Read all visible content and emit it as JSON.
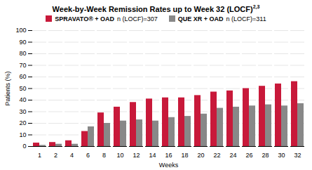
{
  "chart_data": {
    "type": "bar",
    "title": "Week-by-Week Remission Rates up to Week 32 (LOCF)",
    "annotations": [
      "2,3"
    ],
    "x_label": "Weeks",
    "y_label": "Patients (%)",
    "categories": [
      "1",
      "2",
      "4",
      "6",
      "8",
      "10",
      "12",
      "14",
      "16",
      "18",
      "20",
      "22",
      "24",
      "26",
      "28",
      "30",
      "32"
    ],
    "series": [
      {
        "name": "SPRAVATO® + OAD",
        "annotation": "n (LOCF)=307",
        "color": "#C8193A",
        "values": [
          3,
          3.5,
          5,
          13,
          29,
          34,
          38,
          41,
          42,
          42,
          44,
          47,
          48,
          50,
          52,
          54,
          56
        ]
      },
      {
        "name": "QUE XR + OAD",
        "annotation": "n (LOCF)=311",
        "color": "#888888",
        "values": [
          1,
          2,
          2,
          17,
          20,
          22,
          23,
          22,
          25,
          26,
          28,
          33,
          34,
          35,
          36,
          35,
          37
        ]
      }
    ],
    "ylim": [
      0,
      100
    ],
    "yticks": [
      0,
      10,
      20,
      30,
      40,
      50,
      60,
      70,
      80,
      90,
      100
    ],
    "grid": true,
    "legend": "top"
  }
}
